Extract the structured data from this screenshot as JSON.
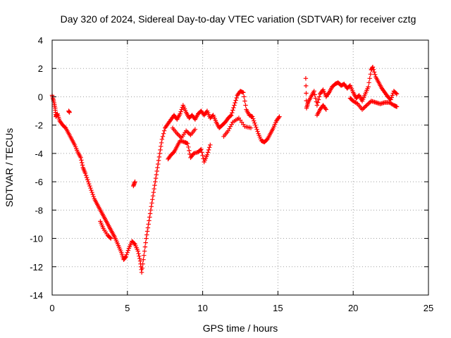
{
  "chart_data": {
    "type": "scatter",
    "title": "Day 320 of 2024, Sidereal Day-to-day VTEC variation (SDTVAR) for receiver cztg",
    "xlabel": "GPS time / hours",
    "ylabel": "SDTVAR / TECUs",
    "xlim": [
      0,
      25
    ],
    "ylim": [
      -14,
      4
    ],
    "xticks": [
      0,
      5,
      10,
      15,
      20,
      25
    ],
    "yticks": [
      -14,
      -12,
      -10,
      -8,
      -6,
      -4,
      -2,
      0,
      2,
      4
    ],
    "grid": true,
    "marker": "+",
    "color": "#ff0000",
    "series": [
      {
        "name": "main-trace",
        "points": [
          [
            0.0,
            0.1
          ],
          [
            0.1,
            -0.3
          ],
          [
            0.2,
            -0.8
          ],
          [
            0.25,
            -1.4
          ],
          [
            0.35,
            -1.2
          ],
          [
            0.5,
            -1.7
          ],
          [
            0.7,
            -2.0
          ],
          [
            0.9,
            -2.2
          ],
          [
            1.1,
            -2.6
          ],
          [
            1.3,
            -3.0
          ],
          [
            1.5,
            -3.4
          ],
          [
            1.7,
            -3.9
          ],
          [
            1.9,
            -4.3
          ],
          [
            2.05,
            -5.0
          ],
          [
            2.2,
            -5.4
          ],
          [
            2.4,
            -6.0
          ],
          [
            2.6,
            -6.6
          ],
          [
            2.8,
            -7.2
          ],
          [
            3.0,
            -7.6
          ],
          [
            3.2,
            -8.0
          ],
          [
            3.4,
            -8.4
          ],
          [
            3.6,
            -8.8
          ],
          [
            3.8,
            -9.2
          ],
          [
            4.0,
            -9.6
          ],
          [
            4.2,
            -10.0
          ],
          [
            4.4,
            -10.5
          ],
          [
            4.6,
            -11.0
          ],
          [
            4.75,
            -11.5
          ],
          [
            4.9,
            -11.3
          ],
          [
            5.1,
            -10.7
          ],
          [
            5.3,
            -10.2
          ],
          [
            5.5,
            -10.4
          ],
          [
            5.7,
            -10.9
          ],
          [
            5.85,
            -11.6
          ],
          [
            5.95,
            -12.4
          ],
          [
            6.1,
            -11.2
          ],
          [
            6.25,
            -10.0
          ],
          [
            6.4,
            -9.0
          ],
          [
            6.55,
            -8.0
          ],
          [
            6.7,
            -7.0
          ],
          [
            6.85,
            -6.0
          ],
          [
            7.0,
            -5.0
          ],
          [
            7.15,
            -4.0
          ],
          [
            7.3,
            -3.0
          ],
          [
            7.5,
            -2.2
          ],
          [
            7.7,
            -1.9
          ],
          [
            7.9,
            -1.6
          ],
          [
            8.1,
            -1.3
          ],
          [
            8.3,
            -1.6
          ],
          [
            8.5,
            -1.2
          ],
          [
            8.7,
            -0.6
          ],
          [
            8.9,
            -1.1
          ],
          [
            9.1,
            -1.5
          ],
          [
            9.3,
            -1.3
          ],
          [
            9.5,
            -1.6
          ],
          [
            9.7,
            -1.2
          ],
          [
            9.9,
            -1.0
          ],
          [
            10.1,
            -1.3
          ],
          [
            10.3,
            -1.0
          ],
          [
            10.5,
            -1.5
          ],
          [
            10.7,
            -1.3
          ],
          [
            10.9,
            -1.8
          ],
          [
            11.1,
            -2.2
          ],
          [
            11.3,
            -2.0
          ],
          [
            11.5,
            -1.8
          ],
          [
            11.7,
            -1.5
          ],
          [
            11.9,
            -1.3
          ],
          [
            12.1,
            -0.6
          ],
          [
            12.3,
            0.1
          ],
          [
            12.5,
            0.4
          ],
          [
            12.7,
            0.3
          ],
          [
            12.9,
            -0.9
          ],
          [
            13.1,
            -1.3
          ],
          [
            13.3,
            -1.4
          ],
          [
            13.5,
            -2.0
          ],
          [
            13.7,
            -2.6
          ],
          [
            13.9,
            -3.1
          ],
          [
            14.1,
            -3.2
          ],
          [
            14.3,
            -3.0
          ],
          [
            14.5,
            -2.6
          ],
          [
            14.7,
            -2.2
          ],
          [
            14.9,
            -1.7
          ],
          [
            15.1,
            -1.4
          ]
        ]
      },
      {
        "name": "early-branch",
        "points": [
          [
            1.1,
            -1.0
          ],
          [
            1.15,
            -1.1
          ],
          [
            3.2,
            -8.8
          ],
          [
            3.4,
            -9.3
          ],
          [
            3.7,
            -9.8
          ],
          [
            3.9,
            -10.0
          ],
          [
            5.4,
            -6.3
          ],
          [
            5.5,
            -6.0
          ]
        ]
      },
      {
        "name": "mid-branch-lower",
        "points": [
          [
            7.7,
            -4.4
          ],
          [
            7.9,
            -4.1
          ],
          [
            8.1,
            -3.9
          ],
          [
            8.3,
            -3.5
          ],
          [
            8.5,
            -3.1
          ],
          [
            8.8,
            -3.2
          ],
          [
            9.0,
            -3.3
          ],
          [
            9.2,
            -4.3
          ],
          [
            9.4,
            -4.0
          ],
          [
            9.7,
            -3.9
          ],
          [
            9.9,
            -3.7
          ],
          [
            10.1,
            -4.6
          ],
          [
            10.3,
            -4.1
          ],
          [
            10.5,
            -3.4
          ]
        ]
      },
      {
        "name": "mid-branch-upper",
        "points": [
          [
            8.0,
            -2.2
          ],
          [
            8.3,
            -2.6
          ],
          [
            8.6,
            -2.9
          ],
          [
            8.9,
            -2.4
          ],
          [
            9.2,
            -2.7
          ],
          [
            9.5,
            -2.3
          ],
          [
            11.4,
            -2.8
          ],
          [
            11.7,
            -2.4
          ],
          [
            12.0,
            -1.8
          ],
          [
            12.4,
            -1.5
          ],
          [
            12.8,
            -2.1
          ],
          [
            13.2,
            -2.2
          ]
        ]
      },
      {
        "name": "late-trace",
        "points": [
          [
            16.85,
            1.3
          ],
          [
            16.9,
            -0.8
          ],
          [
            17.0,
            -0.4
          ],
          [
            17.2,
            0.0
          ],
          [
            17.4,
            0.4
          ],
          [
            17.6,
            -0.6
          ],
          [
            17.8,
            0.2
          ],
          [
            18.0,
            0.5
          ],
          [
            18.2,
            0.0
          ],
          [
            18.4,
            0.3
          ],
          [
            18.6,
            0.7
          ],
          [
            18.8,
            0.9
          ],
          [
            19.0,
            1.0
          ],
          [
            19.2,
            0.8
          ],
          [
            19.4,
            0.9
          ],
          [
            19.6,
            0.6
          ],
          [
            19.8,
            0.8
          ],
          [
            20.0,
            0.3
          ],
          [
            20.2,
            -0.1
          ],
          [
            20.4,
            0.1
          ],
          [
            20.6,
            -0.3
          ],
          [
            20.8,
            0.2
          ],
          [
            21.0,
            0.7
          ],
          [
            21.2,
            1.9
          ],
          [
            21.3,
            2.1
          ],
          [
            21.5,
            1.4
          ],
          [
            21.7,
            1.0
          ],
          [
            21.9,
            0.6
          ],
          [
            22.1,
            0.3
          ],
          [
            22.3,
            0.0
          ],
          [
            22.5,
            -0.2
          ],
          [
            22.7,
            0.4
          ],
          [
            22.9,
            0.2
          ]
        ]
      },
      {
        "name": "late-branch",
        "points": [
          [
            17.6,
            -1.3
          ],
          [
            17.8,
            -0.9
          ],
          [
            18.0,
            -0.6
          ],
          [
            18.2,
            -0.9
          ],
          [
            19.8,
            -0.1
          ],
          [
            20.0,
            -0.3
          ],
          [
            20.3,
            -0.5
          ],
          [
            20.6,
            -0.9
          ],
          [
            20.9,
            -0.6
          ],
          [
            21.2,
            -0.3
          ],
          [
            21.5,
            -0.4
          ],
          [
            21.8,
            -0.5
          ],
          [
            22.1,
            -0.4
          ],
          [
            22.4,
            -0.4
          ],
          [
            22.7,
            -0.6
          ],
          [
            22.9,
            -0.7
          ]
        ]
      }
    ]
  }
}
